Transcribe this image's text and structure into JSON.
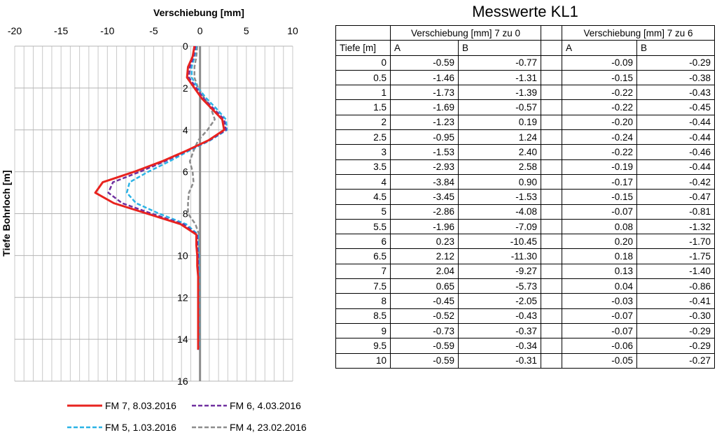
{
  "chart_data": {
    "type": "line",
    "title": "",
    "xlabel": "Verschiebung [mm]",
    "ylabel": "Tiefe Bohrloch [m]",
    "xlim": [
      -20,
      10
    ],
    "ylim": [
      0,
      16
    ],
    "y_inverted": true,
    "x_axis_position": "top",
    "x_ticks": [
      "-20",
      "-15",
      "-10",
      "-5",
      "0",
      "5",
      "10"
    ],
    "y_ticks": [
      "0",
      "2",
      "4",
      "6",
      "8",
      "10",
      "12",
      "14",
      "16"
    ],
    "grid": true,
    "legend_position": "bottom",
    "series": [
      {
        "name": "FM 7, 8.03.2016",
        "color": "#e8231f",
        "dash": "solid",
        "points": [
          [
            -0.6,
            0
          ],
          [
            -0.8,
            0.5
          ],
          [
            -1.3,
            1
          ],
          [
            -1.4,
            1.5
          ],
          [
            -0.6,
            2
          ],
          [
            0.2,
            2.5
          ],
          [
            1.3,
            3
          ],
          [
            2.4,
            3.5
          ],
          [
            2.6,
            4
          ],
          [
            0.9,
            4.5
          ],
          [
            -1.5,
            5
          ],
          [
            -4.1,
            5.5
          ],
          [
            -7.1,
            6
          ],
          [
            -10.5,
            6.5
          ],
          [
            -11.3,
            7
          ],
          [
            -9.3,
            7.5
          ],
          [
            -5.7,
            8
          ],
          [
            -2.1,
            8.5
          ],
          [
            -0.4,
            9
          ],
          [
            -0.4,
            9.5
          ],
          [
            -0.3,
            10
          ],
          [
            -0.3,
            10.5
          ],
          [
            -0.2,
            11
          ],
          [
            -0.2,
            11.5
          ],
          [
            -0.2,
            12
          ],
          [
            -0.2,
            12.5
          ],
          [
            -0.2,
            13
          ],
          [
            -0.2,
            13.5
          ],
          [
            -0.2,
            14
          ],
          [
            -0.2,
            14.5
          ]
        ]
      },
      {
        "name": "FM 6, 4.03.2016",
        "color": "#7030a0",
        "dash": "dashed",
        "points": [
          [
            -0.5,
            0
          ],
          [
            -0.7,
            0.5
          ],
          [
            -1.1,
            1
          ],
          [
            -1.2,
            1.5
          ],
          [
            -0.4,
            2
          ],
          [
            0.4,
            2.5
          ],
          [
            1.5,
            3
          ],
          [
            2.6,
            3.5
          ],
          [
            2.8,
            4
          ],
          [
            1.0,
            4.5
          ],
          [
            -1.4,
            5
          ],
          [
            -3.8,
            5.5
          ],
          [
            -6.5,
            6
          ],
          [
            -9.4,
            6.5
          ],
          [
            -9.9,
            7
          ],
          [
            -8.4,
            7.5
          ],
          [
            -5.2,
            8
          ],
          [
            -1.8,
            8.5
          ],
          [
            -0.3,
            9
          ],
          [
            -0.3,
            9.5
          ],
          [
            -0.2,
            10
          ],
          [
            -0.2,
            10.5
          ],
          [
            -0.2,
            11
          ],
          [
            -0.2,
            11.5
          ],
          [
            -0.2,
            12
          ],
          [
            -0.2,
            12.5
          ],
          [
            -0.2,
            13
          ],
          [
            -0.2,
            13.5
          ],
          [
            -0.2,
            14
          ],
          [
            -0.2,
            14.5
          ]
        ]
      },
      {
        "name": "FM 5, 1.03.2016",
        "color": "#2bb3e6",
        "dash": "dashed",
        "points": [
          [
            -0.4,
            0
          ],
          [
            -0.6,
            0.5
          ],
          [
            -0.9,
            1
          ],
          [
            -0.9,
            1.5
          ],
          [
            -0.2,
            2
          ],
          [
            0.7,
            2.5
          ],
          [
            1.8,
            3
          ],
          [
            2.8,
            3.5
          ],
          [
            2.9,
            4
          ],
          [
            1.1,
            4.5
          ],
          [
            -1.2,
            5
          ],
          [
            -3.3,
            5.5
          ],
          [
            -5.6,
            6
          ],
          [
            -7.6,
            6.5
          ],
          [
            -7.9,
            7
          ],
          [
            -6.9,
            7.5
          ],
          [
            -4.4,
            8
          ],
          [
            -1.5,
            8.5
          ],
          [
            -0.2,
            9
          ],
          [
            -0.2,
            9.5
          ],
          [
            -0.1,
            10
          ],
          [
            -0.1,
            10.5
          ],
          [
            -0.1,
            11
          ],
          [
            -0.1,
            11.5
          ],
          [
            -0.1,
            12
          ],
          [
            -0.1,
            12.5
          ],
          [
            -0.1,
            13
          ],
          [
            -0.1,
            13.5
          ],
          [
            -0.1,
            14
          ],
          [
            -0.1,
            14.5
          ]
        ]
      },
      {
        "name": "FM 4, 23.02.2016",
        "color": "#8c8c8c",
        "dash": "dashed",
        "points": [
          [
            -0.3,
            0
          ],
          [
            -0.4,
            0.5
          ],
          [
            -0.6,
            1
          ],
          [
            -0.6,
            1.5
          ],
          [
            -0.2,
            2
          ],
          [
            0.5,
            2.5
          ],
          [
            1.2,
            3
          ],
          [
            1.6,
            3.5
          ],
          [
            0.8,
            4
          ],
          [
            -0.2,
            4.5
          ],
          [
            -0.7,
            5
          ],
          [
            -1.1,
            5.5
          ],
          [
            -0.8,
            6
          ],
          [
            -0.7,
            6.5
          ],
          [
            -1.2,
            7
          ],
          [
            -1.3,
            7.5
          ],
          [
            -1.3,
            8
          ],
          [
            -0.5,
            8.5
          ],
          [
            -0.1,
            9
          ],
          [
            -0.1,
            9.5
          ],
          [
            -0.1,
            10
          ],
          [
            -0.1,
            10.5
          ],
          [
            -0.1,
            11
          ],
          [
            -0.1,
            11.5
          ],
          [
            -0.1,
            12
          ],
          [
            -0.1,
            12.5
          ],
          [
            -0.1,
            13
          ],
          [
            -0.1,
            13.5
          ],
          [
            -0.1,
            14
          ],
          [
            -0.1,
            14.5
          ]
        ]
      }
    ]
  },
  "table": {
    "title": "Messwerte KL1",
    "group_headers": [
      "Verschiebung [mm] 7 zu 0",
      "Verschiebung [mm] 7 zu 6"
    ],
    "depth_header": "Tiefe [m]",
    "sub_headers": [
      "A",
      "B",
      "A",
      "B"
    ],
    "rows": [
      [
        "0",
        "-0.59",
        "-0.77",
        "-0.09",
        "-0.29"
      ],
      [
        "0.5",
        "-1.46",
        "-1.31",
        "-0.15",
        "-0.38"
      ],
      [
        "1",
        "-1.73",
        "-1.39",
        "-0.22",
        "-0.43"
      ],
      [
        "1.5",
        "-1.69",
        "-0.57",
        "-0.22",
        "-0.45"
      ],
      [
        "2",
        "-1.23",
        "0.19",
        "-0.20",
        "-0.44"
      ],
      [
        "2.5",
        "-0.95",
        "1.24",
        "-0.24",
        "-0.44"
      ],
      [
        "3",
        "-1.53",
        "2.40",
        "-0.22",
        "-0.46"
      ],
      [
        "3.5",
        "-2.93",
        "2.58",
        "-0.19",
        "-0.44"
      ],
      [
        "4",
        "-3.84",
        "0.90",
        "-0.17",
        "-0.42"
      ],
      [
        "4.5",
        "-3.45",
        "-1.53",
        "-0.15",
        "-0.47"
      ],
      [
        "5",
        "-2.86",
        "-4.08",
        "-0.07",
        "-0.81"
      ],
      [
        "5.5",
        "-1.96",
        "-7.09",
        "0.08",
        "-1.32"
      ],
      [
        "6",
        "0.23",
        "-10.45",
        "0.20",
        "-1.70"
      ],
      [
        "6.5",
        "2.12",
        "-11.30",
        "0.18",
        "-1.75"
      ],
      [
        "7",
        "2.04",
        "-9.27",
        "0.13",
        "-1.40"
      ],
      [
        "7.5",
        "0.65",
        "-5.73",
        "0.04",
        "-0.86"
      ],
      [
        "8",
        "-0.45",
        "-2.05",
        "-0.03",
        "-0.41"
      ],
      [
        "8.5",
        "-0.52",
        "-0.43",
        "-0.07",
        "-0.30"
      ],
      [
        "9",
        "-0.73",
        "-0.37",
        "-0.07",
        "-0.29"
      ],
      [
        "9.5",
        "-0.59",
        "-0.34",
        "-0.06",
        "-0.29"
      ],
      [
        "10",
        "-0.59",
        "-0.31",
        "-0.05",
        "-0.27"
      ]
    ]
  }
}
